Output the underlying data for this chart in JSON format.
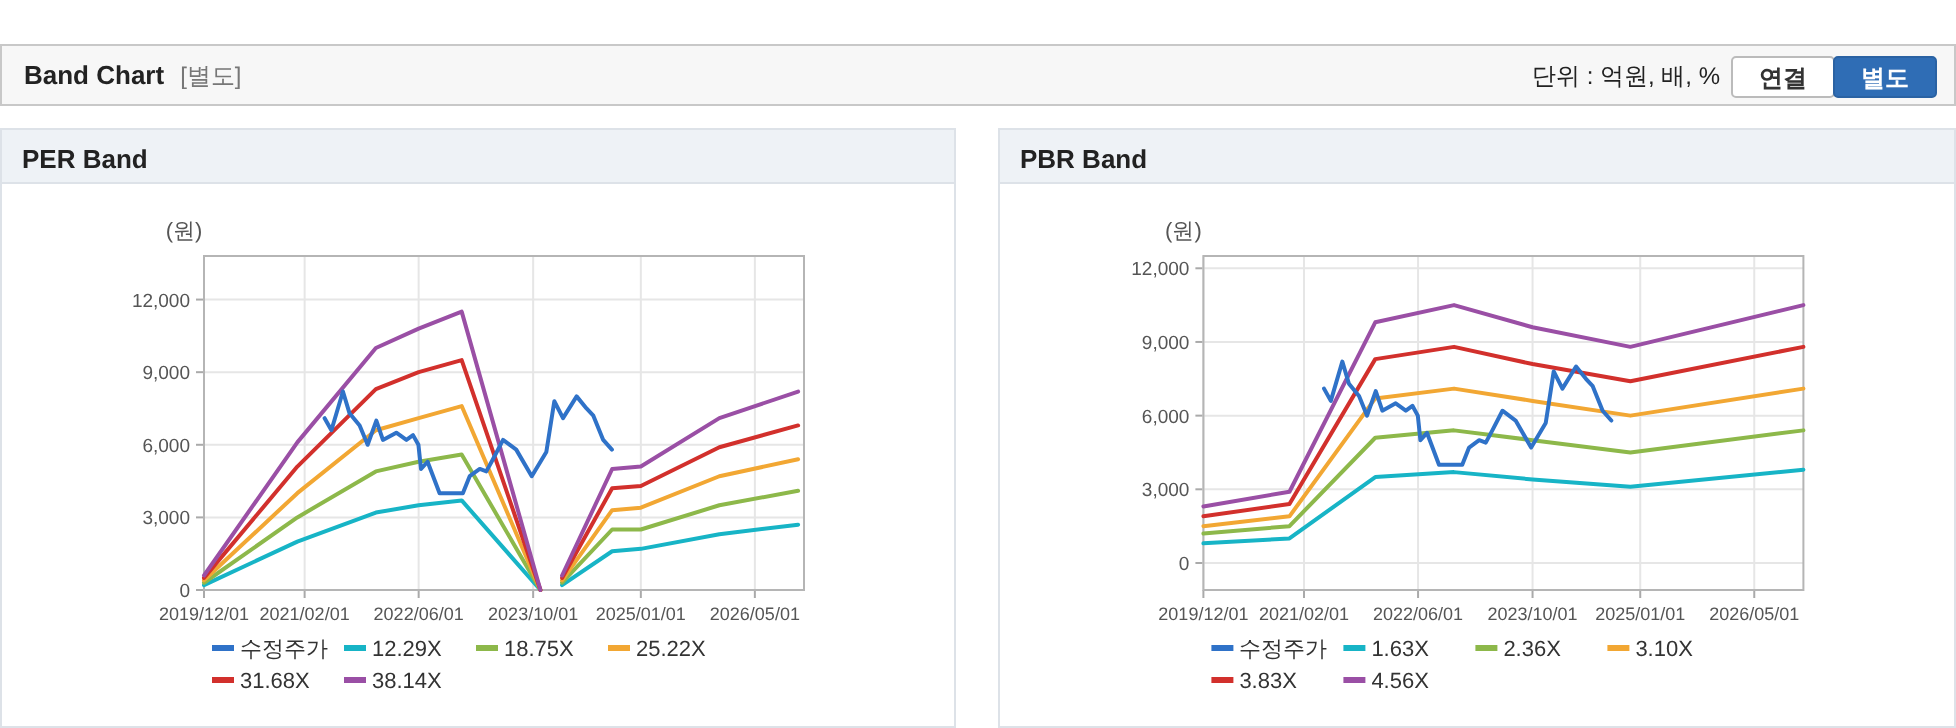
{
  "chart_data": [
    {
      "type": "other",
      "title": "Band Chart",
      "subtitle": "[별도]",
      "annotations": [
        "단위 : 억원, 배, %",
        "연결",
        "별도"
      ]
    },
    {
      "type": "line",
      "title": "PER Band",
      "ylabel": "(원)",
      "grid": true,
      "legend": "bottom",
      "x": [
        "2019-12-01",
        "2021-01-01",
        "2021-12-01",
        "2022-06-01",
        "2022-12-01",
        "2023-11-01",
        "2024-01-01",
        "2024-02-01",
        "2024-09-01",
        "2025-01-01",
        "2025-12-01",
        "2026-11-01"
      ],
      "xlim": [
        "2019-12-01",
        "2026-11-26"
      ],
      "xticks": [
        {
          "value": "2019-12-01",
          "label": "2019/12/01"
        },
        {
          "value": "2021-02-01",
          "label": "2021/02/01"
        },
        {
          "value": "2022-06-01",
          "label": "2022/06/01"
        },
        {
          "value": "2023-10-01",
          "label": "2023/10/01"
        },
        {
          "value": "2025-01-01",
          "label": "2025/01/01"
        },
        {
          "value": "2026-05-01",
          "label": "2026/05/01"
        }
      ],
      "ylim": [
        0,
        13800
      ],
      "yticks": [
        {
          "value": 0,
          "label": "0"
        },
        {
          "value": 3000,
          "label": "3,000"
        },
        {
          "value": 6000,
          "label": "6,000"
        },
        {
          "value": 9000,
          "label": "9,000"
        },
        {
          "value": 12000,
          "label": "12,000"
        }
      ],
      "series": [
        {
          "name": "수정주가",
          "color": "#2f72c8",
          "x": [
            "2021-04-27",
            "2021-05-26",
            "2021-07-14",
            "2021-08-11",
            "2021-09-23",
            "2021-10-27",
            "2021-12-03",
            "2021-12-31",
            "2022-02-26",
            "2022-04-10",
            "2022-05-08",
            "2022-05-31",
            "2022-06-11",
            "2022-07-09",
            "2022-08-29",
            "2022-12-06",
            "2023-01-04",
            "2023-02-16",
            "2023-03-16",
            "2023-04-13",
            "2023-05-26",
            "2023-07-21",
            "2023-09-25",
            "2023-11-26",
            "2023-12-30",
            "2024-02-05",
            "2024-04-03",
            "2024-05-15",
            "2024-06-13",
            "2024-07-25",
            "2024-08-31"
          ],
          "values": [
            7100,
            6600,
            8200,
            7300,
            6800,
            6000,
            7000,
            6200,
            6500,
            6200,
            6400,
            6000,
            5000,
            5300,
            4000,
            4000,
            4700,
            5000,
            4900,
            5400,
            6200,
            5800,
            4700,
            5700,
            7800,
            7100,
            8000,
            7500,
            7200,
            6200,
            5800
          ]
        },
        {
          "name": "12.29X",
          "color": "#17b4c6",
          "values": [
            200,
            2000,
            3200,
            3500,
            3700,
            0,
            null,
            200,
            1600,
            1700,
            2300,
            2700
          ]
        },
        {
          "name": "18.75X",
          "color": "#8db84a",
          "values": [
            300,
            3000,
            4900,
            5300,
            5600,
            0,
            null,
            300,
            2500,
            2500,
            3500,
            4100
          ]
        },
        {
          "name": "25.22X",
          "color": "#f2a733",
          "values": [
            400,
            4000,
            6600,
            7100,
            7600,
            0,
            null,
            400,
            3300,
            3400,
            4700,
            5400
          ]
        },
        {
          "name": "31.68X",
          "color": "#d2302c",
          "values": [
            500,
            5100,
            8300,
            9000,
            9500,
            0,
            null,
            500,
            4200,
            4300,
            5900,
            6800
          ]
        },
        {
          "name": "38.14X",
          "color": "#9a4fa5",
          "values": [
            600,
            6100,
            10000,
            10800,
            11500,
            0,
            null,
            600,
            5000,
            5100,
            7100,
            8200
          ]
        }
      ]
    },
    {
      "type": "line",
      "title": "PBR Band",
      "ylabel": "(원)",
      "grid": true,
      "legend": "bottom",
      "x": [
        "2019-12-01",
        "2020-12-01",
        "2021-12-01",
        "2022-11-01",
        "2023-10-01",
        "2024-11-20",
        "2026-11-26"
      ],
      "xlim": [
        "2019-12-01",
        "2026-11-26"
      ],
      "xticks": [
        {
          "value": "2019-12-01",
          "label": "2019/12/01"
        },
        {
          "value": "2021-02-01",
          "label": "2021/02/01"
        },
        {
          "value": "2022-06-01",
          "label": "2022/06/01"
        },
        {
          "value": "2023-10-01",
          "label": "2023/10/01"
        },
        {
          "value": "2025-01-01",
          "label": "2025/01/01"
        },
        {
          "value": "2026-05-01",
          "label": "2026/05/01"
        }
      ],
      "ylim": [
        -1100,
        12500
      ],
      "yticks": [
        {
          "value": 0,
          "label": "0"
        },
        {
          "value": 3000,
          "label": "3,000"
        },
        {
          "value": 6000,
          "label": "6,000"
        },
        {
          "value": 9000,
          "label": "9,000"
        },
        {
          "value": 12000,
          "label": "12,000"
        }
      ],
      "series": [
        {
          "name": "수정주가",
          "color": "#2f72c8",
          "x": [
            "2021-04-27",
            "2021-05-26",
            "2021-07-14",
            "2021-08-11",
            "2021-09-23",
            "2021-10-27",
            "2021-12-03",
            "2021-12-31",
            "2022-02-26",
            "2022-04-10",
            "2022-05-08",
            "2022-05-31",
            "2022-06-11",
            "2022-07-09",
            "2022-08-29",
            "2022-12-06",
            "2023-01-04",
            "2023-02-16",
            "2023-03-16",
            "2023-04-13",
            "2023-05-26",
            "2023-07-21",
            "2023-09-25",
            "2023-11-26",
            "2023-12-30",
            "2024-02-05",
            "2024-04-03",
            "2024-05-15",
            "2024-06-13",
            "2024-07-25",
            "2024-08-31"
          ],
          "values": [
            7100,
            6600,
            8200,
            7300,
            6800,
            6000,
            7000,
            6200,
            6500,
            6200,
            6400,
            6000,
            5000,
            5300,
            4000,
            4000,
            4700,
            5000,
            4900,
            5400,
            6200,
            5800,
            4700,
            5700,
            7800,
            7100,
            8000,
            7500,
            7200,
            6200,
            5800
          ]
        },
        {
          "name": "1.63X",
          "color": "#17b4c6",
          "values": [
            800,
            1000,
            3500,
            3700,
            3400,
            3100,
            3800
          ]
        },
        {
          "name": "2.36X",
          "color": "#8db84a",
          "values": [
            1200,
            1500,
            5100,
            5400,
            5000,
            4500,
            5400
          ]
        },
        {
          "name": "3.10X",
          "color": "#f2a733",
          "values": [
            1500,
            1900,
            6700,
            7100,
            6600,
            6000,
            7100
          ]
        },
        {
          "name": "3.83X",
          "color": "#d2302c",
          "values": [
            1900,
            2400,
            8300,
            8800,
            8100,
            7400,
            8800
          ]
        },
        {
          "name": "4.56X",
          "color": "#9a4fa5",
          "values": [
            2300,
            2900,
            9800,
            10500,
            9600,
            8800,
            10500
          ]
        }
      ]
    }
  ]
}
